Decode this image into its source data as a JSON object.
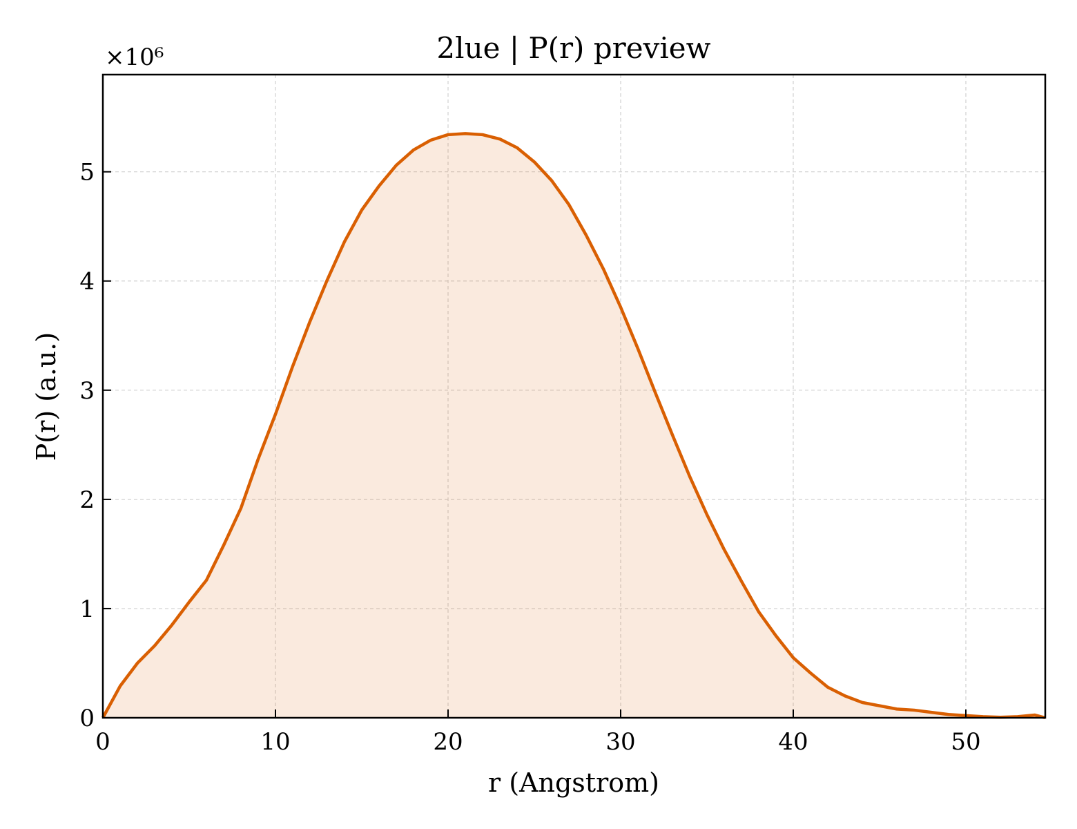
{
  "chart_data": {
    "type": "line",
    "title": "2lue | P(r) preview",
    "xlabel": "r (Angstrom)",
    "ylabel": "P(r) (a.u.)",
    "y_multiplier": "×10⁶",
    "x": [
      0,
      1,
      2,
      3,
      4,
      5,
      6,
      7,
      8,
      9,
      10,
      11,
      12,
      13,
      14,
      15,
      16,
      17,
      18,
      19,
      20,
      21,
      22,
      23,
      24,
      25,
      26,
      27,
      28,
      29,
      30,
      31,
      32,
      33,
      34,
      35,
      36,
      37,
      38,
      39,
      40,
      41,
      42,
      43,
      44,
      45,
      46,
      47,
      48,
      49,
      50,
      51,
      52,
      53,
      54,
      54.6
    ],
    "values": [
      0,
      0.29,
      0.5,
      0.66,
      0.85,
      1.06,
      1.26,
      1.58,
      1.92,
      2.37,
      2.78,
      3.22,
      3.63,
      4.01,
      4.36,
      4.65,
      4.87,
      5.06,
      5.2,
      5.29,
      5.34,
      5.35,
      5.34,
      5.3,
      5.22,
      5.09,
      4.92,
      4.7,
      4.42,
      4.11,
      3.76,
      3.38,
      2.98,
      2.59,
      2.21,
      1.86,
      1.54,
      1.25,
      0.97,
      0.75,
      0.55,
      0.41,
      0.28,
      0.2,
      0.14,
      0.11,
      0.08,
      0.07,
      0.05,
      0.03,
      0.02,
      0.01,
      0.005,
      0.01,
      0.025,
      0
    ],
    "color": "#d95f02",
    "fill": true,
    "xlim": [
      0,
      54.6
    ],
    "ylim": [
      0,
      5.89
    ],
    "xticks": [
      0,
      10,
      20,
      30,
      40,
      50
    ],
    "yticks": [
      0,
      1,
      2,
      3,
      4,
      5
    ],
    "grid": true
  }
}
